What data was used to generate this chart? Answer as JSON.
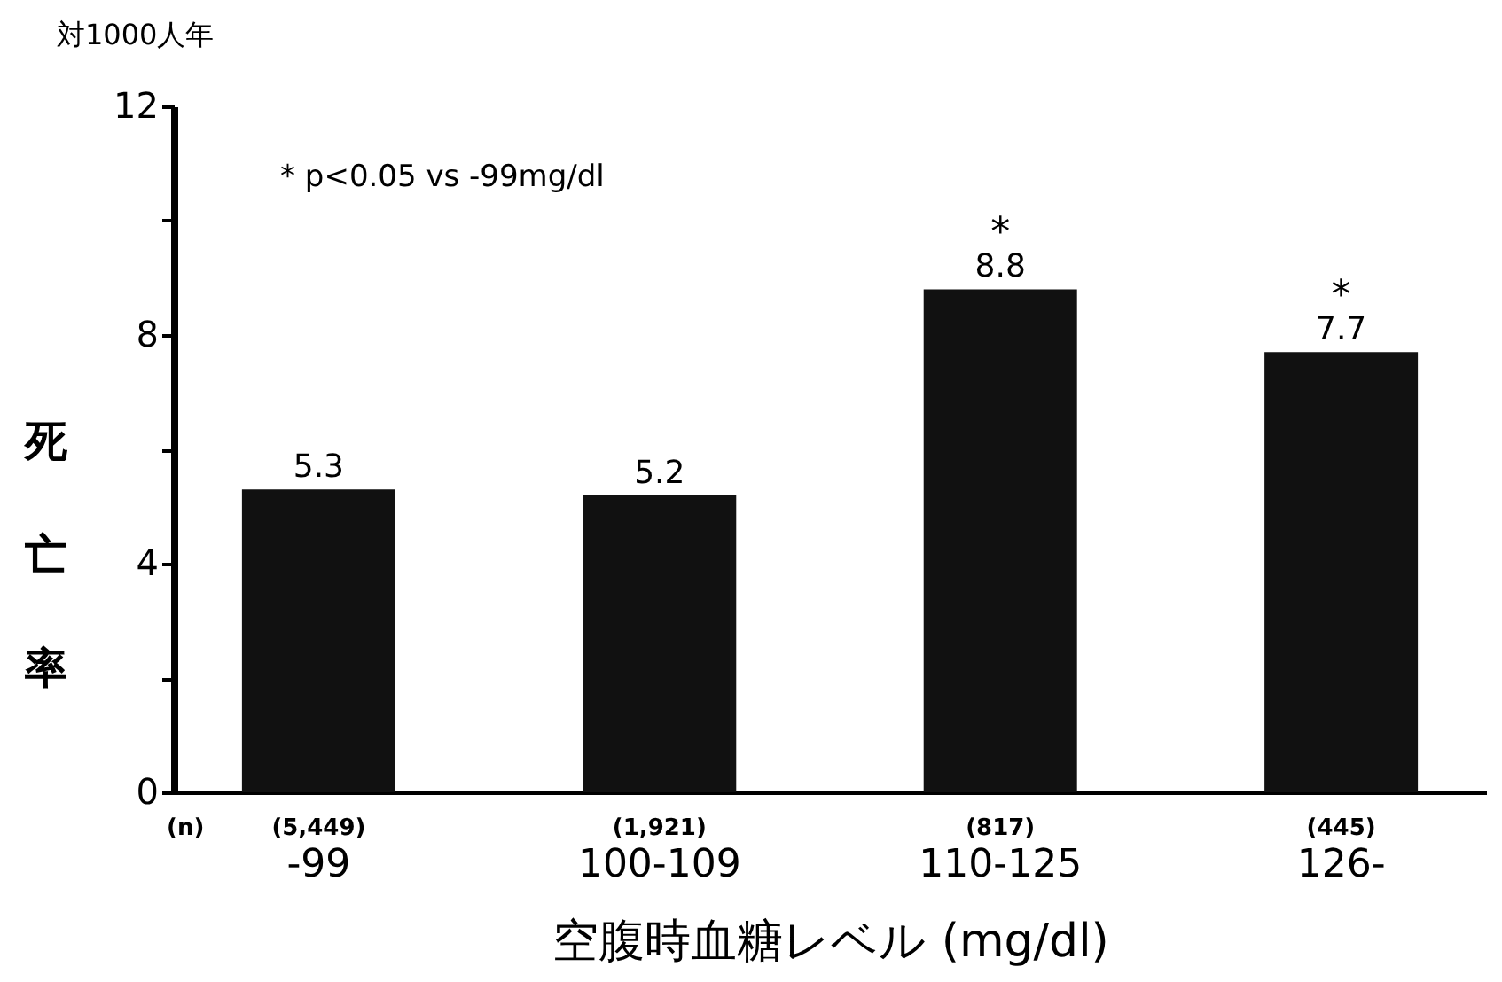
{
  "chart_data": {
    "type": "bar",
    "title": "対1000人年",
    "ylabel": "死亡率",
    "xlabel": "空腹時血糖レベル (mg/dl)",
    "categories": [
      "-99",
      "100-109",
      "110-125",
      "126-"
    ],
    "values": [
      5.3,
      5.2,
      8.8,
      7.7
    ],
    "color": "#111111",
    "ylim": [
      0,
      12
    ],
    "yticks": [
      0,
      {
        "value": 2,
        "label": null
      },
      4,
      {
        "value": 6,
        "label": null
      },
      8,
      {
        "value": 10,
        "label": null
      },
      12
    ],
    "grid": false,
    "data_labels": true,
    "annotations": [
      "* p<0.05 vs -99mg/dl",
      "(n)",
      "(5,449)",
      "(1,921)",
      "(817)",
      "(445)",
      {
        "text": "*",
        "x": "110-125",
        "y": 8.8
      },
      {
        "text": "*",
        "x": "126-",
        "y": 7.7
      }
    ]
  }
}
